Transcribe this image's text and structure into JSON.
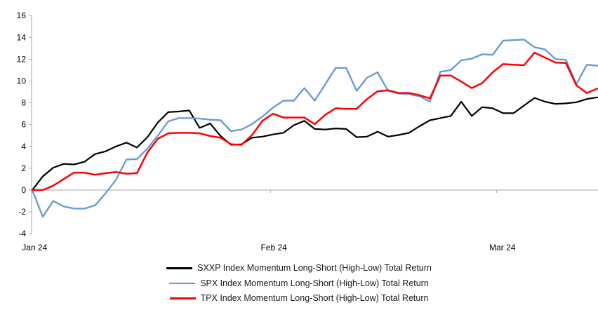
{
  "chart_data": {
    "type": "line",
    "title": "",
    "xlabel": "",
    "ylabel": "",
    "ylim": [
      -4,
      16
    ],
    "y_step": 2,
    "y_tick_labels": [
      "16",
      "14",
      "12",
      "10",
      "8",
      "6",
      "4",
      "2",
      "0",
      "-2",
      "-4"
    ],
    "x_tick_labels": [
      "Jan 24",
      "Feb 24",
      "Mar 24"
    ],
    "grid": "zero-line-only",
    "legend_position": "bottom-center",
    "series": [
      {
        "id": "sxxp",
        "name": "SXXP Index Momentum Long-Short (High-Low) Total Return",
        "color": "#000000",
        "values": [
          0,
          1.25,
          2.05,
          2.4,
          2.35,
          2.6,
          3.3,
          3.55,
          4.0,
          4.35,
          3.9,
          4.85,
          6.2,
          7.15,
          7.2,
          7.3,
          5.7,
          6.1,
          4.95,
          4.15,
          4.2,
          4.8,
          4.9,
          5.1,
          5.25,
          5.95,
          6.35,
          5.6,
          5.55,
          5.65,
          5.6,
          4.85,
          4.9,
          5.35,
          4.9,
          5.05,
          5.25,
          5.85,
          6.4,
          6.6,
          6.8,
          8.1,
          6.8,
          7.6,
          7.5,
          7.05,
          7.05,
          7.75,
          8.45,
          8.1,
          7.9,
          7.95,
          8.05,
          8.35,
          8.5
        ]
      },
      {
        "id": "spx",
        "name": "SPX Index Momentum Long-Short (High-Low) Total Return",
        "color": "#6A9CD3",
        "values": [
          0,
          -2.45,
          -1.0,
          -1.5,
          -1.7,
          -1.7,
          -1.4,
          -0.3,
          0.95,
          2.8,
          2.85,
          3.8,
          5.0,
          6.3,
          6.6,
          6.6,
          6.55,
          6.45,
          6.4,
          5.4,
          5.55,
          6.05,
          6.75,
          7.55,
          8.2,
          8.2,
          9.35,
          8.2,
          9.7,
          11.2,
          11.2,
          9.1,
          10.3,
          10.8,
          9.1,
          8.85,
          8.8,
          8.6,
          8.1,
          10.85,
          11.0,
          11.9,
          12.05,
          12.45,
          12.4,
          13.7,
          13.75,
          13.8,
          13.1,
          12.9,
          12.0,
          11.95,
          9.7,
          11.5,
          11.4
        ]
      },
      {
        "id": "tpx",
        "name": "TPX Index Momentum Long-Short (High-Low) Total Return",
        "color": "#FF0000",
        "values": [
          0,
          0,
          0.4,
          1.0,
          1.6,
          1.6,
          1.4,
          1.55,
          1.65,
          1.5,
          1.55,
          3.45,
          4.7,
          5.2,
          5.25,
          5.25,
          5.2,
          4.95,
          4.8,
          4.2,
          4.15,
          5.05,
          6.35,
          7.0,
          6.65,
          6.65,
          6.65,
          6.05,
          6.9,
          7.5,
          7.45,
          7.45,
          8.35,
          9.05,
          9.15,
          8.9,
          8.9,
          8.7,
          8.4,
          10.5,
          10.5,
          9.95,
          9.35,
          9.8,
          10.8,
          11.55,
          11.5,
          11.45,
          12.6,
          12.15,
          11.7,
          11.65,
          9.6,
          8.9,
          9.3
        ]
      }
    ],
    "colors": {
      "axis_line": "#A6A6A6",
      "tick_text": "#000000"
    }
  }
}
